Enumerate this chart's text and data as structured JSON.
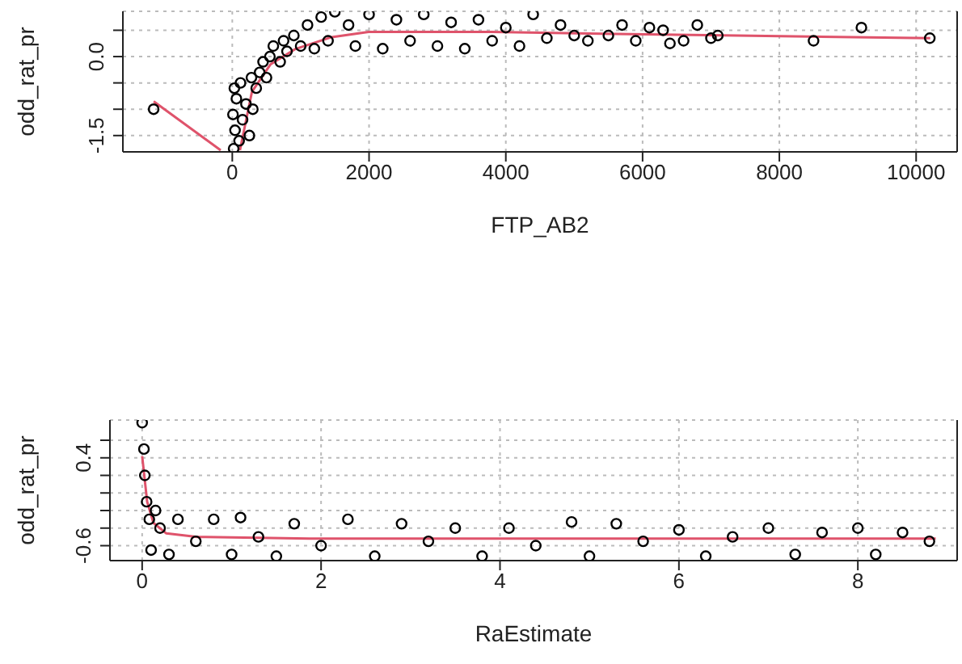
{
  "chart_data": [
    {
      "type": "scatter",
      "xlabel": "FTP_AB2",
      "ylabel": "odd_rat_pr",
      "xlim": [
        -1600,
        10600
      ],
      "xticks": [
        0,
        2000,
        4000,
        6000,
        8000,
        10000
      ],
      "ylim": [
        -1.81,
        0.86
      ],
      "yticks": [
        {
          "value": -1.5,
          "label": "-1.5"
        },
        {
          "value": -1,
          "label": null
        },
        {
          "value": -0.5,
          "label": null
        },
        {
          "value": 0,
          "label": "0.0"
        },
        {
          "value": 0.5,
          "label": null
        }
      ],
      "grid": true,
      "legend": false,
      "series": [
        {
          "marker": "circle",
          "color": "#000000",
          "x": [
            -1150,
            20,
            40,
            10,
            60,
            30,
            100,
            150,
            200,
            120,
            250,
            300,
            280,
            350,
            400,
            450,
            500,
            550,
            600,
            700,
            750,
            800,
            900,
            1000,
            1100,
            1200,
            1300,
            1400,
            1500,
            1700,
            1800,
            2000,
            2200,
            2400,
            2600,
            2800,
            3000,
            3200,
            3400,
            3600,
            3800,
            4000,
            4200,
            4400,
            4600,
            4800,
            5000,
            5200,
            5500,
            5700,
            5900,
            6100,
            6300,
            6400,
            6600,
            6800,
            7000,
            7100,
            8500,
            9200,
            10200
          ],
          "values": [
            -1.0,
            -1.75,
            -1.4,
            -1.1,
            -0.8,
            -0.6,
            -1.6,
            -1.2,
            -0.9,
            -0.5,
            -1.5,
            -1.0,
            -0.4,
            -0.6,
            -0.3,
            -0.1,
            -0.4,
            0.0,
            0.2,
            -0.1,
            0.3,
            0.1,
            0.4,
            0.2,
            0.6,
            0.15,
            0.75,
            0.3,
            0.85,
            0.6,
            0.2,
            0.8,
            0.15,
            0.7,
            0.3,
            0.8,
            0.2,
            0.65,
            0.15,
            0.7,
            0.3,
            0.55,
            0.2,
            0.8,
            0.35,
            0.6,
            0.4,
            0.3,
            0.4,
            0.6,
            0.3,
            0.55,
            0.5,
            0.25,
            0.3,
            0.6,
            0.35,
            0.4,
            0.3,
            0.55,
            0.35
          ]
        },
        {
          "type": "line",
          "color": "#df536b",
          "x": [
            -1150,
            -170,
            0,
            112,
            287,
            557,
            916,
            1454,
            1993,
            3788,
            5584,
            7380,
            10206
          ],
          "values": [
            -0.85,
            -1.78,
            null,
            -1.78,
            -0.67,
            -0.15,
            0.14,
            0.37,
            0.47,
            0.47,
            0.43,
            0.4,
            0.35
          ]
        }
      ]
    },
    {
      "type": "scatter",
      "xlabel": "RaEstimate",
      "ylabel": "odd_rat_pr",
      "xlim": [
        -0.36,
        9.11
      ],
      "xticks": [
        0,
        2,
        4,
        6,
        8
      ],
      "ylim": [
        -0.77,
        0.83
      ],
      "yticks": [
        {
          "value": -0.6,
          "label": "-0.6"
        },
        {
          "value": -0.4,
          "label": null
        },
        {
          "value": -0.2,
          "label": null
        },
        {
          "value": 0,
          "label": null
        },
        {
          "value": 0.2,
          "label": null
        },
        {
          "value": 0.4,
          "label": "0.4"
        },
        {
          "value": 0.6,
          "label": null
        }
      ],
      "grid": true,
      "legend": false,
      "series": [
        {
          "marker": "circle",
          "color": "#000000",
          "x": [
            0.0,
            0.02,
            0.03,
            0.05,
            0.08,
            0.1,
            0.15,
            0.2,
            0.3,
            0.4,
            0.6,
            0.8,
            1.0,
            1.1,
            1.3,
            1.5,
            1.7,
            2.0,
            2.3,
            2.6,
            2.9,
            3.2,
            3.5,
            3.8,
            4.1,
            4.4,
            4.8,
            5.0,
            5.3,
            5.6,
            6.0,
            6.3,
            6.6,
            7.0,
            7.3,
            7.6,
            8.0,
            8.2,
            8.5,
            8.8
          ],
          "values": [
            0.8,
            0.5,
            0.2,
            -0.1,
            -0.3,
            -0.65,
            -0.2,
            -0.4,
            -0.7,
            -0.3,
            -0.55,
            -0.3,
            -0.7,
            -0.28,
            -0.5,
            -0.72,
            -0.35,
            -0.6,
            -0.3,
            -0.72,
            -0.35,
            -0.55,
            -0.4,
            -0.72,
            -0.4,
            -0.6,
            -0.33,
            -0.72,
            -0.35,
            -0.55,
            -0.42,
            -0.72,
            -0.5,
            -0.4,
            -0.7,
            -0.45,
            -0.4,
            -0.7,
            -0.45,
            -0.55
          ]
        },
        {
          "type": "line",
          "color": "#df536b",
          "x": [
            0,
            0.056,
            0.126,
            0.27,
            0.62,
            1.87,
            8.87
          ],
          "values": [
            0.42,
            -0.1,
            -0.34,
            -0.46,
            -0.5,
            -0.52,
            -0.52
          ]
        }
      ]
    }
  ]
}
